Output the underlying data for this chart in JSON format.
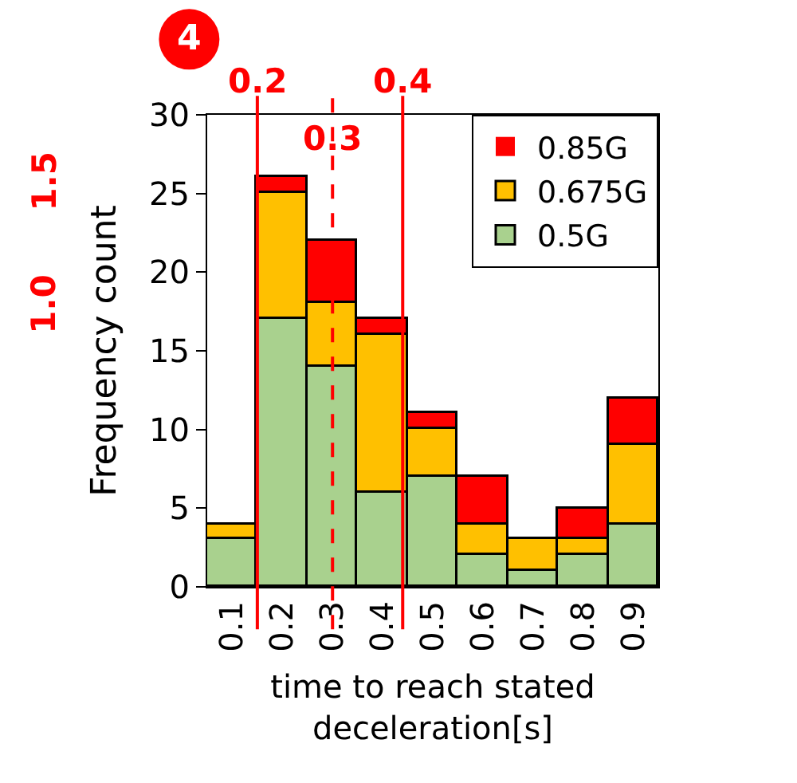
{
  "chart_data": {
    "type": "bar",
    "stacked": true,
    "xlabel": "time to reach stated deceleration[s]",
    "ylabel": "Frequency count",
    "x": [
      0.1,
      0.2,
      0.3,
      0.4,
      0.5,
      0.6,
      0.7,
      0.8,
      0.9
    ],
    "xlim": [
      0.05,
      0.95
    ],
    "xticks": [
      0.1,
      0.2,
      0.3,
      0.4,
      0.5,
      0.6,
      0.7,
      0.8,
      0.9
    ],
    "ylim": [
      0,
      30
    ],
    "yticks": [
      0,
      5,
      10,
      15,
      20,
      25,
      30
    ],
    "series": [
      {
        "name": "0.5G",
        "color": "#a9d18e",
        "values": [
          3,
          17,
          14,
          6,
          7,
          2,
          1,
          2,
          4
        ]
      },
      {
        "name": "0.675G",
        "color": "#ffc000",
        "values": [
          1,
          8,
          4,
          10,
          3,
          2,
          2,
          1,
          5
        ]
      },
      {
        "name": "0.85G",
        "color": "#ff0000",
        "values": [
          0,
          1,
          4,
          1,
          1,
          3,
          0,
          2,
          3
        ]
      }
    ],
    "ref_lines": [
      {
        "axis": "x",
        "value": 0.15,
        "label": "0.2",
        "color": "#ff0000",
        "line_style": "solid"
      },
      {
        "axis": "x",
        "value": 0.3,
        "label": "0.3",
        "color": "#ff0000",
        "line_style": "dashed"
      },
      {
        "axis": "x",
        "value": 0.44,
        "label": "0.4",
        "color": "#ff0000",
        "line_style": "solid"
      }
    ],
    "annotations": [
      "4",
      "1.5",
      "1.0"
    ],
    "legend": "top right"
  }
}
